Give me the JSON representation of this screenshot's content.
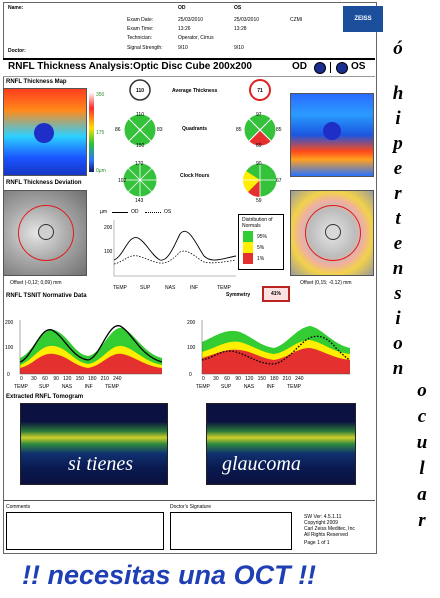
{
  "header": {
    "name_label": "Name:",
    "doctor_label": "Doctor:",
    "col_od": "OD",
    "col_os": "OS",
    "exam_date_label": "Exam Date:",
    "exam_date_od": "25/03/2010",
    "exam_date_os": "25/03/2010",
    "exam_code": "CZMI",
    "exam_time_label": "Exam Time:",
    "exam_time_od": "13:26",
    "exam_time_os": "13:28",
    "technician_label": "Technician:",
    "technician_value": "Operator, Cirrus",
    "signal_label": "Signal Strength:",
    "signal_od": "9/10",
    "signal_os": "9/10",
    "brand": "ZEISS"
  },
  "title_bar": {
    "title": "RNFL Thickness Analysis:Optic Disc Cube 200x200",
    "od": "OD",
    "os": "OS"
  },
  "left_panel": {
    "map_title": "RNFL Thickness Map",
    "scale_top": "350",
    "scale_mid": "175",
    "scale_bottom": "0µm",
    "deviation_title": "RNFL Thickness Deviation",
    "offset_od": "Offset (-0,12; 0,09) mm",
    "tsnit_title": "RNFL TSNIT Normative Data",
    "tomogram_title": "Extracted RNFL Tomogram"
  },
  "right_panel": {
    "offset_os": "Offset (0,15; -0,12) mm"
  },
  "center": {
    "avg_label": "Average Thickness",
    "avg_od": "110",
    "avg_os": "71",
    "quadrants_label": "Quadrants",
    "quad_od": {
      "t": "86",
      "s": "110",
      "n": "83",
      "i": "150"
    },
    "quad_os": {
      "t": "85",
      "s": "97",
      "n": "85",
      "i": "69"
    },
    "clock_label": "Clock Hours",
    "clock_od_top": "170",
    "clock_od_side": "102",
    "clock_od_bottom": "143",
    "clock_os_top": "90",
    "clock_os_side": "67",
    "clock_os_bottom": "59",
    "distribution_title": "Distribution of Normals",
    "dist_95": "95%",
    "dist_5": "5%",
    "dist_1": "1%",
    "legend_um": "µm",
    "legend_od": "OD",
    "legend_os": "OS",
    "symmetry_label": "Symmetry",
    "symmetry_value": "41%"
  },
  "tsnit_axis": {
    "y_labels": [
      "200",
      "100",
      "0"
    ],
    "x_labels": [
      "TEMP",
      "SUP",
      "NAS",
      "INF",
      "TEMP"
    ],
    "x_ticks": [
      "0",
      "30",
      "60",
      "90",
      "120",
      "150",
      "180",
      "210",
      "240"
    ]
  },
  "footer": {
    "comments_label": "Comments",
    "signature_label": "Doctor's Signature",
    "sw_ver": "SW Ver: 4.5.1.11",
    "copyright": "Copyright 2009",
    "company": "Carl Zeiss Meditec, Inc",
    "rights": "All Rights Reserved",
    "page": "Page 1 of 1"
  },
  "overlay": {
    "left_text": "si tienes",
    "right_text": "glaucoma",
    "banner": "!! necesitas una OCT !!",
    "vertical_left": "ó hipertension",
    "vertical_right": "ocular"
  },
  "colors": {
    "banner_blue": "#1f3fb5",
    "normal_green": "#33cc33",
    "borderline_yellow": "#ffee00",
    "abnormal_red": "#e53030",
    "tomogram_navy": "#0b1140"
  }
}
